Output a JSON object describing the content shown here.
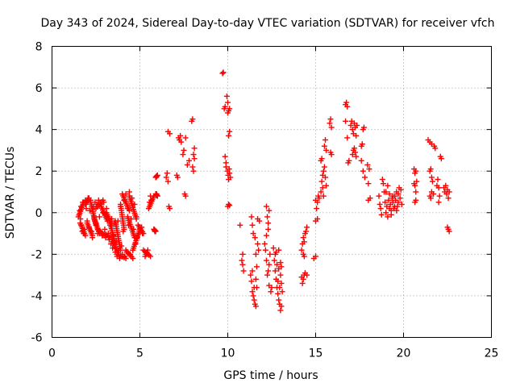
{
  "chart_data": {
    "type": "scatter",
    "title": "Day 343 of 2024, Sidereal Day-to-day VTEC variation (SDTVAR) for receiver vfch",
    "xlabel": "GPS time / hours",
    "ylabel": "SDTVAR / TECUs",
    "xlim": [
      0,
      25
    ],
    "ylim": [
      -6,
      8
    ],
    "xticks": [
      0,
      5,
      10,
      15,
      20,
      25
    ],
    "yticks": [
      -6,
      -4,
      -2,
      0,
      2,
      4,
      6,
      8
    ],
    "xtick_labels": [
      "0",
      "5",
      "10",
      "15",
      "20",
      "25"
    ],
    "ytick_labels": [
      "-6",
      "-4",
      "-2",
      "0",
      "2",
      "4",
      "6",
      "8"
    ],
    "grid": true,
    "marker": "+",
    "series_color": "#ff0000",
    "segments": [
      [
        1.5,
        -0.2,
        1.8,
        0.5
      ],
      [
        1.6,
        -0.5,
        1.9,
        -1.1
      ],
      [
        1.9,
        0.4,
        2.1,
        0.7
      ],
      [
        2.0,
        -0.5,
        2.3,
        -1.1
      ],
      [
        2.2,
        0.5,
        2.5,
        -0.6
      ],
      [
        2.4,
        -0.3,
        2.7,
        -1.0
      ],
      [
        2.5,
        0.2,
        2.9,
        0.6
      ],
      [
        2.6,
        -0.8,
        3.0,
        -1.1
      ],
      [
        2.8,
        0.3,
        3.1,
        -0.3
      ],
      [
        3.0,
        -1.0,
        3.3,
        -1.2
      ],
      [
        3.1,
        0.0,
        3.4,
        -0.6
      ],
      [
        3.3,
        -0.5,
        3.6,
        -1.5
      ],
      [
        3.4,
        -1.3,
        3.8,
        -2.0
      ],
      [
        3.6,
        -0.4,
        3.9,
        -1.8
      ],
      [
        3.7,
        -2.0,
        4.2,
        -2.2
      ],
      [
        3.9,
        0.4,
        4.1,
        -0.8
      ],
      [
        4.0,
        0.9,
        4.4,
        0.1
      ],
      [
        4.2,
        -1.8,
        4.6,
        -2.2
      ],
      [
        4.3,
        -0.2,
        4.7,
        -1.2
      ],
      [
        4.4,
        0.8,
        4.8,
        -0.3
      ],
      [
        4.6,
        -1.8,
        5.0,
        -0.8
      ],
      [
        4.9,
        -0.6,
        5.2,
        -1.0
      ],
      [
        5.2,
        -1.8,
        5.6,
        -2.1
      ],
      [
        5.5,
        0.2,
        5.8,
        0.8
      ],
      [
        5.8,
        -0.8,
        5.9,
        -0.9
      ],
      [
        5.9,
        1.7,
        6.0,
        1.8
      ],
      [
        5.9,
        0.9,
        6.0,
        0.8
      ]
    ],
    "points": [
      [
        1.55,
        -0.1
      ],
      [
        1.58,
        0.1
      ],
      [
        1.62,
        -0.3
      ],
      [
        1.65,
        0.3
      ],
      [
        1.68,
        -0.6
      ],
      [
        1.72,
        -0.9
      ],
      [
        1.75,
        0.5
      ],
      [
        1.8,
        -1.0
      ],
      [
        1.85,
        -0.8
      ],
      [
        1.9,
        0.6
      ],
      [
        1.95,
        0.2
      ],
      [
        2.0,
        -0.4
      ],
      [
        2.05,
        0.7
      ],
      [
        2.1,
        -0.7
      ],
      [
        2.15,
        0.1
      ],
      [
        2.2,
        0.6
      ],
      [
        2.25,
        -0.9
      ],
      [
        2.3,
        -1.2
      ],
      [
        2.35,
        0.3
      ],
      [
        2.4,
        -0.2
      ],
      [
        2.45,
        0.5
      ],
      [
        2.5,
        -0.5
      ],
      [
        2.55,
        0.4
      ],
      [
        2.6,
        -1.0
      ],
      [
        2.65,
        0.6
      ],
      [
        2.7,
        -0.2
      ],
      [
        2.75,
        -0.9
      ],
      [
        2.8,
        0.4
      ],
      [
        2.85,
        -1.1
      ],
      [
        2.9,
        0.0
      ],
      [
        2.95,
        0.5
      ],
      [
        3.0,
        -0.8
      ],
      [
        3.05,
        -1.2
      ],
      [
        3.1,
        0.2
      ],
      [
        3.15,
        -0.4
      ],
      [
        3.2,
        -1.0
      ],
      [
        3.25,
        -1.3
      ],
      [
        3.3,
        -0.6
      ],
      [
        3.35,
        -1.5
      ],
      [
        3.4,
        -0.3
      ],
      [
        3.45,
        -1.7
      ],
      [
        3.5,
        -1.1
      ],
      [
        3.55,
        -0.5
      ],
      [
        3.6,
        -1.9
      ],
      [
        3.65,
        -1.4
      ],
      [
        3.7,
        -2.1
      ],
      [
        3.75,
        -0.4
      ],
      [
        3.8,
        -1.8
      ],
      [
        3.85,
        -2.2
      ],
      [
        3.9,
        0.3
      ],
      [
        3.95,
        -1.6
      ],
      [
        4.0,
        -2.0
      ],
      [
        4.05,
        -0.9
      ],
      [
        4.1,
        0.6
      ],
      [
        4.15,
        -2.1
      ],
      [
        4.2,
        0.9
      ],
      [
        4.25,
        -1.9
      ],
      [
        4.3,
        0.2
      ],
      [
        4.35,
        -0.6
      ],
      [
        4.4,
        1.0
      ],
      [
        4.45,
        -2.0
      ],
      [
        4.5,
        -0.3
      ],
      [
        4.55,
        0.7
      ],
      [
        4.6,
        -1.8
      ],
      [
        4.65,
        -0.8
      ],
      [
        4.7,
        0.4
      ],
      [
        4.75,
        -1.5
      ],
      [
        4.8,
        -0.2
      ],
      [
        4.85,
        -1.2
      ],
      [
        4.9,
        -0.6
      ],
      [
        4.95,
        -1.0
      ],
      [
        5.0,
        -0.8
      ],
      [
        5.05,
        -0.9
      ],
      [
        5.1,
        -0.7
      ],
      [
        5.15,
        -1.0
      ],
      [
        5.3,
        -2.1
      ],
      [
        5.35,
        -2.0
      ],
      [
        5.4,
        -1.9
      ],
      [
        5.45,
        -1.8
      ],
      [
        5.55,
        0.5
      ],
      [
        5.6,
        0.8
      ],
      [
        5.65,
        0.6
      ],
      [
        5.8,
        -0.8
      ],
      [
        5.85,
        -0.9
      ],
      [
        5.92,
        1.7
      ],
      [
        5.95,
        0.9
      ],
      [
        6.5,
        1.7
      ],
      [
        6.55,
        1.9
      ],
      [
        6.6,
        1.5
      ],
      [
        6.65,
        0.3
      ],
      [
        6.7,
        0.2
      ],
      [
        6.6,
        3.9
      ],
      [
        6.7,
        3.8
      ],
      [
        7.1,
        1.8
      ],
      [
        7.15,
        1.7
      ],
      [
        7.2,
        3.6
      ],
      [
        7.25,
        3.5
      ],
      [
        7.3,
        3.7
      ],
      [
        7.35,
        3.4
      ],
      [
        7.45,
        2.8
      ],
      [
        7.5,
        3.0
      ],
      [
        7.55,
        0.9
      ],
      [
        7.6,
        0.8
      ],
      [
        7.6,
        3.6
      ],
      [
        7.7,
        2.3
      ],
      [
        7.8,
        2.5
      ],
      [
        7.95,
        4.4
      ],
      [
        8.0,
        4.5
      ],
      [
        8.0,
        2.2
      ],
      [
        8.05,
        2.8
      ],
      [
        8.1,
        3.1
      ],
      [
        8.05,
        2.0
      ],
      [
        8.1,
        2.6
      ],
      [
        9.7,
        6.7
      ],
      [
        9.75,
        6.75
      ],
      [
        9.8,
        5.0
      ],
      [
        9.85,
        5.1
      ],
      [
        9.85,
        2.7
      ],
      [
        9.9,
        2.2
      ],
      [
        9.9,
        2.4
      ],
      [
        9.95,
        5.6
      ],
      [
        10.0,
        5.3
      ],
      [
        10.0,
        4.8
      ],
      [
        10.05,
        4.9
      ],
      [
        10.1,
        5.0
      ],
      [
        10.05,
        3.7
      ],
      [
        10.1,
        3.9
      ],
      [
        9.98,
        2.0
      ],
      [
        10.02,
        1.8
      ],
      [
        10.05,
        1.6
      ],
      [
        10.08,
        2.1
      ],
      [
        10.1,
        1.9
      ],
      [
        10.15,
        1.7
      ],
      [
        10.0,
        0.3
      ],
      [
        10.05,
        0.4
      ],
      [
        10.1,
        0.35
      ],
      [
        10.7,
        -0.6
      ],
      [
        10.8,
        -2.3
      ],
      [
        10.85,
        -2.5
      ],
      [
        10.9,
        -2.8
      ],
      [
        10.85,
        -2.0
      ],
      [
        11.3,
        -3.0
      ],
      [
        11.35,
        -3.3
      ],
      [
        11.4,
        -3.8
      ],
      [
        11.45,
        -4.0
      ],
      [
        11.5,
        -4.2
      ],
      [
        11.55,
        -4.4
      ],
      [
        11.6,
        -4.5
      ],
      [
        11.4,
        -2.8
      ],
      [
        11.5,
        -3.6
      ],
      [
        11.35,
        -0.2
      ],
      [
        11.4,
        -0.6
      ],
      [
        11.45,
        -1.0
      ],
      [
        11.55,
        -1.2
      ],
      [
        11.6,
        -2.0
      ],
      [
        11.65,
        -2.6
      ],
      [
        11.7,
        -1.5
      ],
      [
        11.75,
        -1.8
      ],
      [
        11.8,
        -0.4
      ],
      [
        11.7,
        -0.3
      ],
      [
        11.6,
        -3.2
      ],
      [
        11.65,
        -3.6
      ],
      [
        12.1,
        -1.5
      ],
      [
        12.15,
        -1.8
      ],
      [
        12.2,
        -2.3
      ],
      [
        12.25,
        -3.0
      ],
      [
        12.3,
        -2.8
      ],
      [
        12.35,
        -2.5
      ],
      [
        12.2,
        -1.1
      ],
      [
        12.3,
        -0.5
      ],
      [
        12.35,
        0.1
      ],
      [
        12.2,
        0.3
      ],
      [
        12.25,
        -0.2
      ],
      [
        12.3,
        -0.8
      ],
      [
        12.4,
        -2.0
      ],
      [
        12.35,
        -3.5
      ],
      [
        12.45,
        -3.8
      ],
      [
        12.5,
        -3.6
      ],
      [
        12.6,
        -1.7
      ],
      [
        12.65,
        -2.3
      ],
      [
        12.7,
        -2.8
      ],
      [
        12.75,
        -3.2
      ],
      [
        12.8,
        -3.6
      ],
      [
        12.85,
        -3.9
      ],
      [
        12.9,
        -4.2
      ],
      [
        12.95,
        -4.4
      ],
      [
        13.0,
        -4.7
      ],
      [
        13.05,
        -4.5
      ],
      [
        12.7,
        -2.0
      ],
      [
        12.75,
        -1.9
      ],
      [
        12.8,
        -2.5
      ],
      [
        12.9,
        -2.7
      ],
      [
        13.0,
        -3.0
      ],
      [
        13.05,
        -3.4
      ],
      [
        13.1,
        -3.8
      ],
      [
        12.85,
        -3.3
      ],
      [
        12.95,
        -3.6
      ],
      [
        12.9,
        -1.8
      ],
      [
        13.0,
        -2.4
      ],
      [
        13.05,
        -2.6
      ],
      [
        14.2,
        -1.8
      ],
      [
        14.25,
        -1.5
      ],
      [
        14.3,
        -1.2
      ],
      [
        14.35,
        -1.4
      ],
      [
        14.4,
        -1.0
      ],
      [
        14.45,
        -0.9
      ],
      [
        14.5,
        -0.7
      ],
      [
        14.3,
        -2.0
      ],
      [
        14.35,
        -2.1
      ],
      [
        14.2,
        -3.1
      ],
      [
        14.3,
        -3.2
      ],
      [
        14.4,
        -2.9
      ],
      [
        14.5,
        -3.0
      ],
      [
        14.25,
        -3.4
      ],
      [
        14.35,
        -3.0
      ],
      [
        14.9,
        -2.2
      ],
      [
        15.0,
        -2.1
      ],
      [
        15.0,
        -0.4
      ],
      [
        15.05,
        0.2
      ],
      [
        15.1,
        0.5
      ],
      [
        15.15,
        0.8
      ],
      [
        15.0,
        0.6
      ],
      [
        15.1,
        -0.3
      ],
      [
        15.2,
        0.7
      ],
      [
        15.3,
        1.0
      ],
      [
        15.35,
        1.5
      ],
      [
        15.4,
        1.8
      ],
      [
        15.45,
        2.0
      ],
      [
        15.5,
        2.2
      ],
      [
        15.55,
        1.7
      ],
      [
        15.6,
        1.3
      ],
      [
        15.4,
        1.2
      ],
      [
        15.45,
        0.8
      ],
      [
        15.5,
        3.2
      ],
      [
        15.55,
        3.5
      ],
      [
        15.6,
        3.0
      ],
      [
        15.3,
        2.5
      ],
      [
        15.35,
        2.6
      ],
      [
        15.8,
        4.3
      ],
      [
        15.85,
        4.5
      ],
      [
        15.9,
        4.1
      ],
      [
        15.85,
        2.9
      ],
      [
        15.9,
        2.8
      ],
      [
        16.7,
        5.2
      ],
      [
        16.75,
        5.3
      ],
      [
        16.8,
        5.1
      ],
      [
        16.7,
        4.4
      ],
      [
        16.8,
        3.6
      ],
      [
        16.85,
        2.4
      ],
      [
        16.9,
        2.5
      ],
      [
        17.0,
        4.2
      ],
      [
        17.05,
        4.4
      ],
      [
        17.1,
        4.0
      ],
      [
        17.15,
        3.8
      ],
      [
        17.2,
        4.3
      ],
      [
        17.25,
        4.1
      ],
      [
        17.3,
        3.7
      ],
      [
        17.35,
        4.2
      ],
      [
        17.1,
        2.8
      ],
      [
        17.15,
        3.0
      ],
      [
        17.2,
        3.1
      ],
      [
        17.25,
        2.9
      ],
      [
        17.3,
        2.7
      ],
      [
        17.6,
        3.2
      ],
      [
        17.65,
        3.3
      ],
      [
        17.7,
        4.0
      ],
      [
        17.75,
        4.1
      ],
      [
        17.6,
        2.5
      ],
      [
        17.7,
        2.0
      ],
      [
        17.8,
        1.7
      ],
      [
        17.95,
        2.3
      ],
      [
        18.05,
        2.1
      ],
      [
        18.0,
        0.6
      ],
      [
        18.1,
        0.7
      ],
      [
        18.0,
        1.4
      ],
      [
        18.6,
        0.8
      ],
      [
        18.65,
        0.4
      ],
      [
        18.7,
        0.2
      ],
      [
        18.75,
        -0.1
      ],
      [
        18.8,
        1.6
      ],
      [
        18.85,
        1.4
      ],
      [
        18.9,
        1.0
      ],
      [
        18.95,
        0.5
      ],
      [
        19.0,
        0.0
      ],
      [
        19.05,
        0.3
      ],
      [
        19.1,
        -0.2
      ],
      [
        19.15,
        0.6
      ],
      [
        19.2,
        0.9
      ],
      [
        19.25,
        0.4
      ],
      [
        19.3,
        0.1
      ],
      [
        19.35,
        0.7
      ],
      [
        19.4,
        0.5
      ],
      [
        19.45,
        0.2
      ],
      [
        19.5,
        0.8
      ],
      [
        19.55,
        0.6
      ],
      [
        19.6,
        1.0
      ],
      [
        19.65,
        0.3
      ],
      [
        19.7,
        0.9
      ],
      [
        19.75,
        1.2
      ],
      [
        19.8,
        0.7
      ],
      [
        19.85,
        1.1
      ],
      [
        19.9,
        0.4
      ],
      [
        19.0,
        1.0
      ],
      [
        19.1,
        1.3
      ],
      [
        19.2,
        0.2
      ],
      [
        19.3,
        -0.1
      ],
      [
        19.4,
        0.8
      ],
      [
        19.5,
        0.3
      ],
      [
        19.6,
        0.1
      ],
      [
        19.7,
        0.5
      ],
      [
        20.6,
        2.1
      ],
      [
        20.65,
        1.9
      ],
      [
        20.7,
        2.0
      ],
      [
        20.6,
        1.4
      ],
      [
        20.65,
        1.3
      ],
      [
        20.7,
        0.6
      ],
      [
        20.65,
        0.5
      ],
      [
        20.7,
        1.0
      ],
      [
        20.75,
        1.5
      ],
      [
        21.5,
        2.0
      ],
      [
        21.55,
        2.1
      ],
      [
        21.6,
        1.7
      ],
      [
        21.65,
        1.5
      ],
      [
        21.6,
        1.0
      ],
      [
        21.7,
        0.9
      ],
      [
        21.5,
        0.8
      ],
      [
        21.55,
        0.7
      ],
      [
        21.4,
        3.5
      ],
      [
        21.5,
        3.4
      ],
      [
        21.6,
        3.3
      ],
      [
        21.75,
        3.2
      ],
      [
        21.8,
        3.1
      ],
      [
        21.9,
        1.3
      ],
      [
        21.95,
        1.6
      ],
      [
        22.0,
        1.2
      ],
      [
        22.05,
        0.8
      ],
      [
        22.0,
        0.5
      ],
      [
        22.1,
        2.7
      ],
      [
        22.15,
        2.6
      ],
      [
        22.3,
        1.2
      ],
      [
        22.35,
        1.0
      ],
      [
        22.4,
        1.3
      ],
      [
        22.45,
        0.9
      ],
      [
        22.5,
        1.1
      ],
      [
        22.55,
        0.7
      ],
      [
        22.6,
        1.0
      ],
      [
        22.5,
        -0.7
      ],
      [
        22.55,
        -0.8
      ],
      [
        22.6,
        -0.9
      ]
    ]
  }
}
